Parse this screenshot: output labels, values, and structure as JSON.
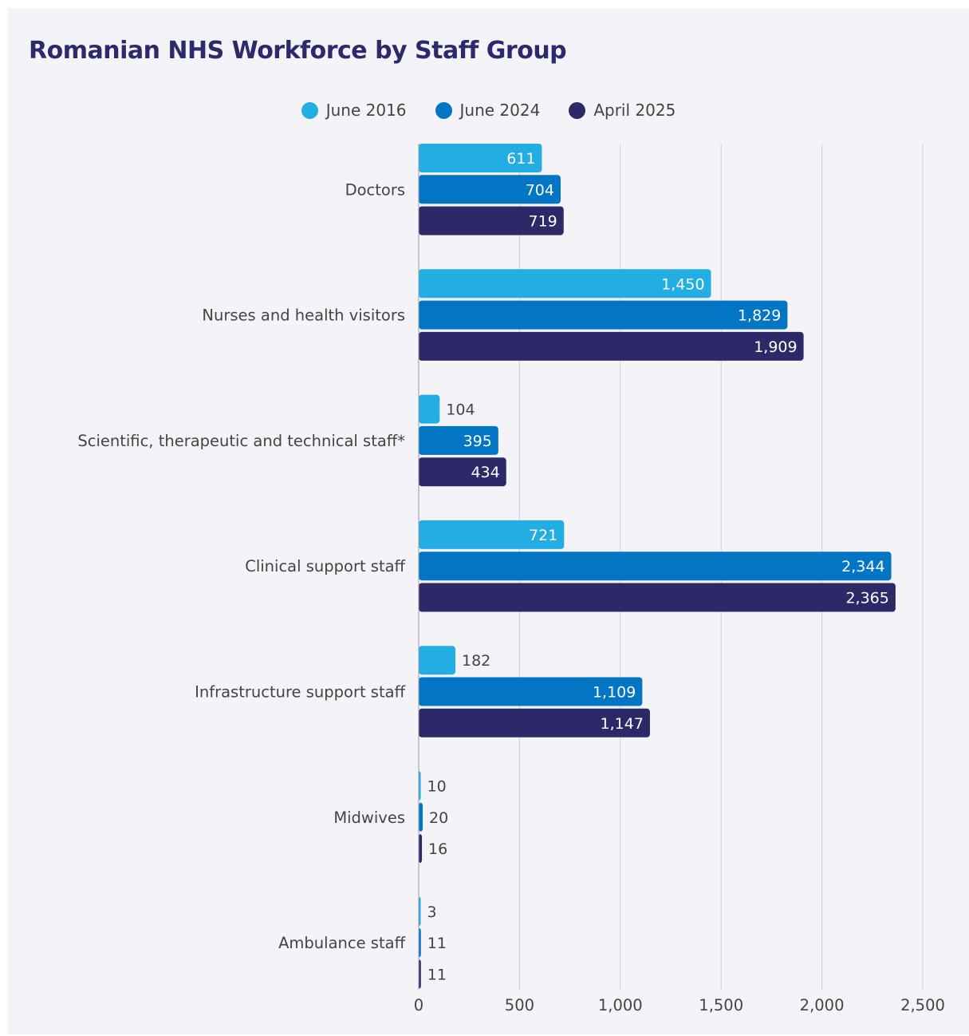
{
  "chart_data": {
    "type": "bar",
    "orientation": "horizontal",
    "title": "Romanian NHS Workforce by Staff Group",
    "categories": [
      "Doctors",
      "Nurses and health visitors",
      "Scientific, therapeutic and technical staff*",
      "Clinical support staff",
      "Infrastructure support staff",
      "Midwives",
      "Ambulance staff"
    ],
    "series": [
      {
        "name": "June 2016",
        "color": "#22ade3",
        "values": [
          611,
          1450,
          104,
          721,
          182,
          10,
          3
        ]
      },
      {
        "name": "June 2024",
        "color": "#0276c4",
        "values": [
          704,
          1829,
          395,
          2344,
          1109,
          20,
          11
        ]
      },
      {
        "name": "April 2025",
        "color": "#2d2868",
        "values": [
          719,
          1909,
          434,
          2365,
          1147,
          16,
          11
        ]
      }
    ],
    "value_labels": [
      [
        "611",
        "1,450",
        "104",
        "721",
        "182",
        "10",
        "3"
      ],
      [
        "704",
        "1,829",
        "395",
        "2,344",
        "1,109",
        "20",
        "11"
      ],
      [
        "719",
        "1,909",
        "434",
        "2,365",
        "1,147",
        "16",
        "11"
      ]
    ],
    "xlim": [
      0,
      2500
    ],
    "xticks": [
      0,
      500,
      1000,
      1500,
      2000,
      2500
    ],
    "xtick_labels": [
      "0",
      "500",
      "1,000",
      "1,500",
      "2,000",
      "2,500"
    ],
    "grid": true,
    "legend_position": "top-center"
  }
}
